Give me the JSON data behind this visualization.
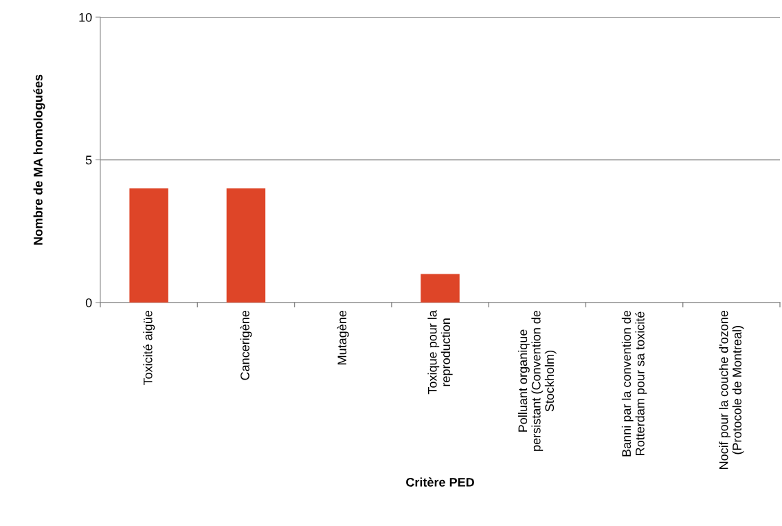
{
  "chart_data": {
    "type": "bar",
    "xlabel": "Critère PED",
    "ylabel": "Nombre de MA homologuées",
    "categories": [
      "Toxicité aigüe",
      "Cancerigène",
      "Mutagène",
      "Toxique pour la\nreproduction",
      "Polluant organique\npersistant (Convention de\nStockholm)",
      "Banni par la convention de\nRotterdam pour sa toxicité",
      "Nocif pour la couche d'ozone\n(Protocole de Montreal)"
    ],
    "values": [
      4,
      4,
      0,
      1,
      0,
      0,
      0
    ],
    "color": "#de4528",
    "ylim": [
      0,
      10
    ],
    "yticks": [
      0,
      5,
      10
    ],
    "grid": "y",
    "legend": false
  }
}
